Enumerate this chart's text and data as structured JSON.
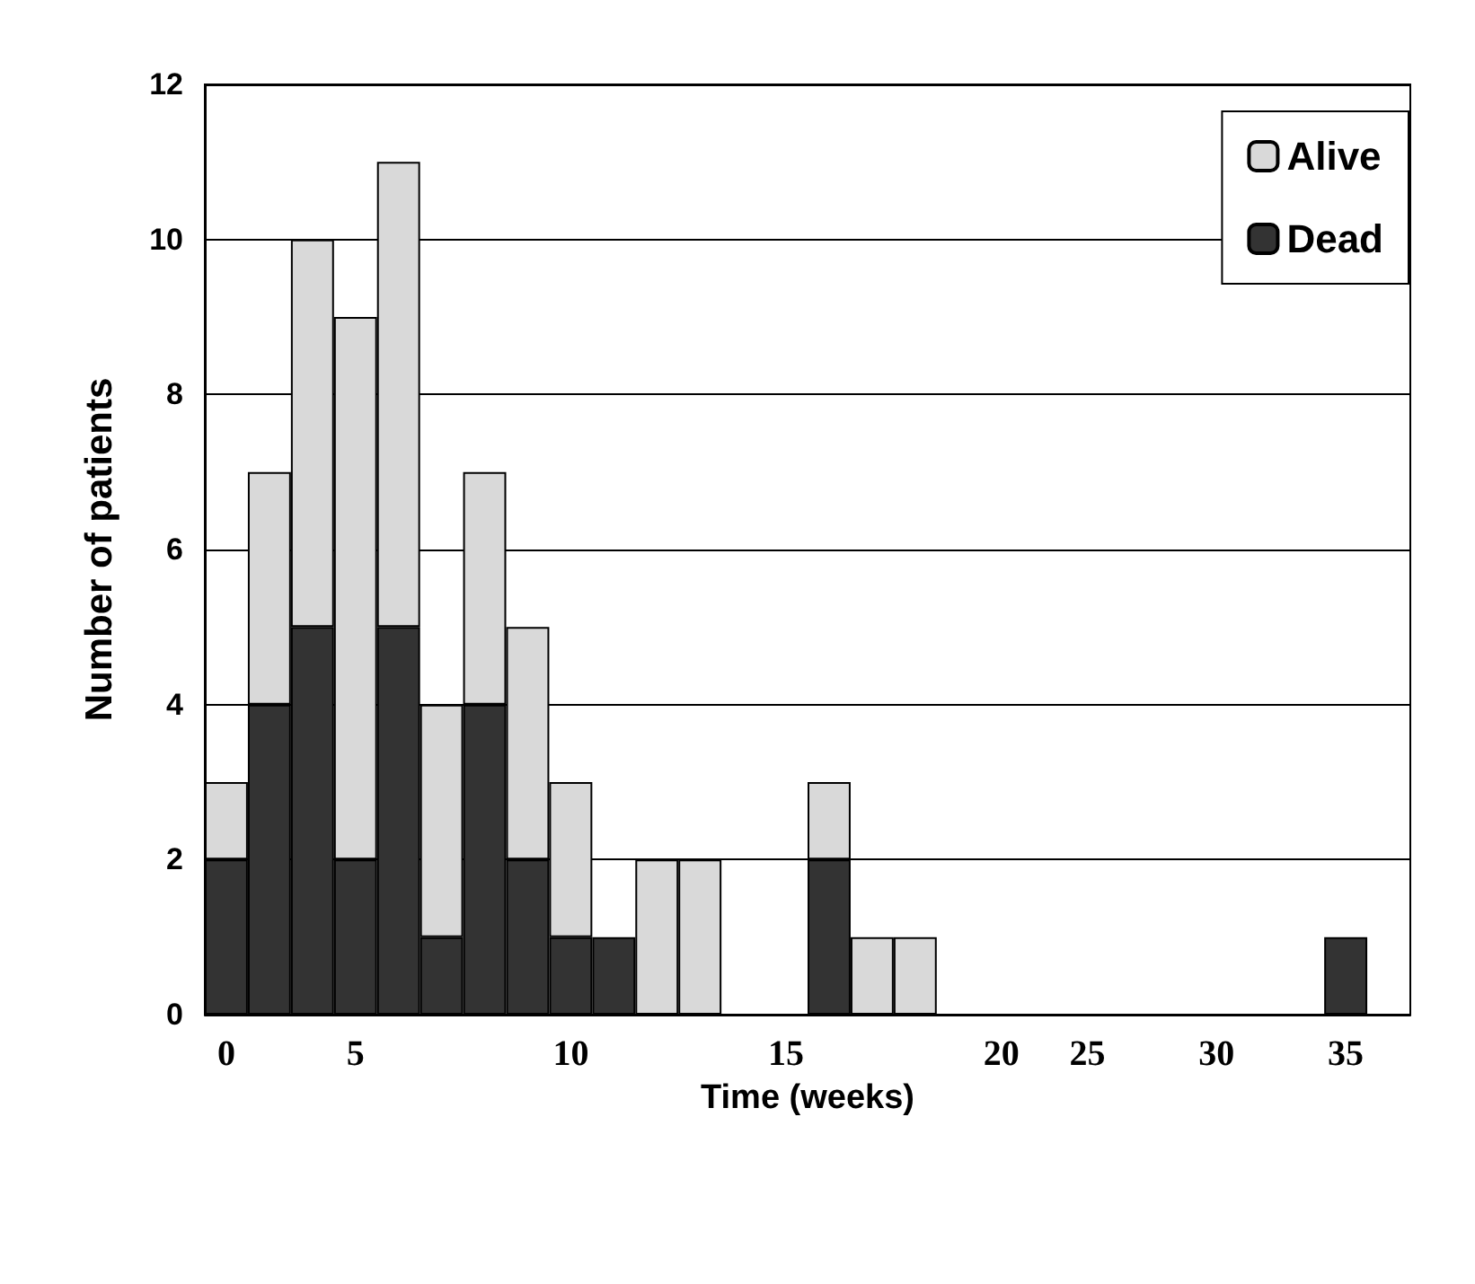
{
  "chart_data": {
    "type": "bar",
    "stacked": true,
    "xlabel": "Time (weeks)",
    "ylabel": "Number of patients",
    "categories": [
      "0",
      null,
      null,
      "5",
      null,
      null,
      null,
      null,
      "10",
      null,
      null,
      null,
      null,
      "15",
      null,
      null,
      null,
      null,
      "20",
      null,
      "25",
      null,
      null,
      "30",
      null,
      null,
      "35",
      null
    ],
    "series": [
      {
        "name": "Dead",
        "color": "#333333",
        "values": [
          2,
          4,
          5,
          2,
          5,
          1,
          4,
          2,
          1,
          1,
          null,
          null,
          null,
          null,
          2,
          null,
          null,
          null,
          null,
          null,
          null,
          null,
          null,
          null,
          null,
          null,
          1,
          null
        ]
      },
      {
        "name": "Alive",
        "color": "#d9d9d9",
        "values": [
          1,
          3,
          5,
          7,
          6,
          3,
          3,
          3,
          2,
          null,
          2,
          2,
          null,
          null,
          1,
          1,
          1,
          null,
          null,
          null,
          null,
          null,
          null,
          null,
          null,
          null,
          null,
          null
        ]
      }
    ],
    "ylim": [
      0,
      12
    ],
    "yticks": [
      0,
      2,
      4,
      6,
      8,
      10,
      12
    ],
    "grid": "y",
    "legend": "top right"
  }
}
